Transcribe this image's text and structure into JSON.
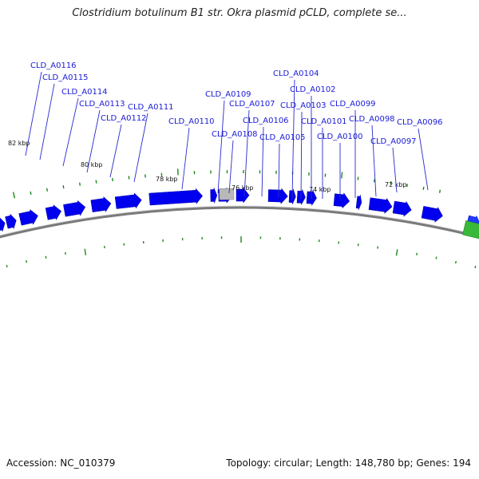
{
  "title": "Clostridium botulinum B1 str. Okra plasmid pCLD, complete se...",
  "footer": {
    "accession": "Accession: NC_010379",
    "summary": "Topology: circular; Length: 148,780 bp; Genes: 194"
  },
  "colors": {
    "gene_forward": "#0000ee",
    "gene_other": "#3ab83a",
    "gene_unknown": "#b8b8b8",
    "label": "#1a1ad8",
    "backbone": "#7a7a7a",
    "tick": "#1a8a1a"
  },
  "tick_labels": [
    "82 kbp",
    "80 kbp",
    "78 kbp",
    "76 kbp",
    "74 kbp",
    "72 kbp"
  ],
  "gene_labels": [
    "CLD_A0116",
    "CLD_A0115",
    "CLD_A0114",
    "CLD_A0113",
    "CLD_A0112",
    "CLD_A0111",
    "CLD_A0110",
    "CLD_A0109",
    "CLD_A0108",
    "CLD_A0107",
    "CLD_A0106",
    "CLD_A0105",
    "CLD_A0104",
    "CLD_A0103",
    "CLD_A0102",
    "CLD_A0101",
    "CLD_A0100",
    "CLD_A0099",
    "CLD_A0098",
    "CLD_A0097",
    "CLD_A0096"
  ]
}
